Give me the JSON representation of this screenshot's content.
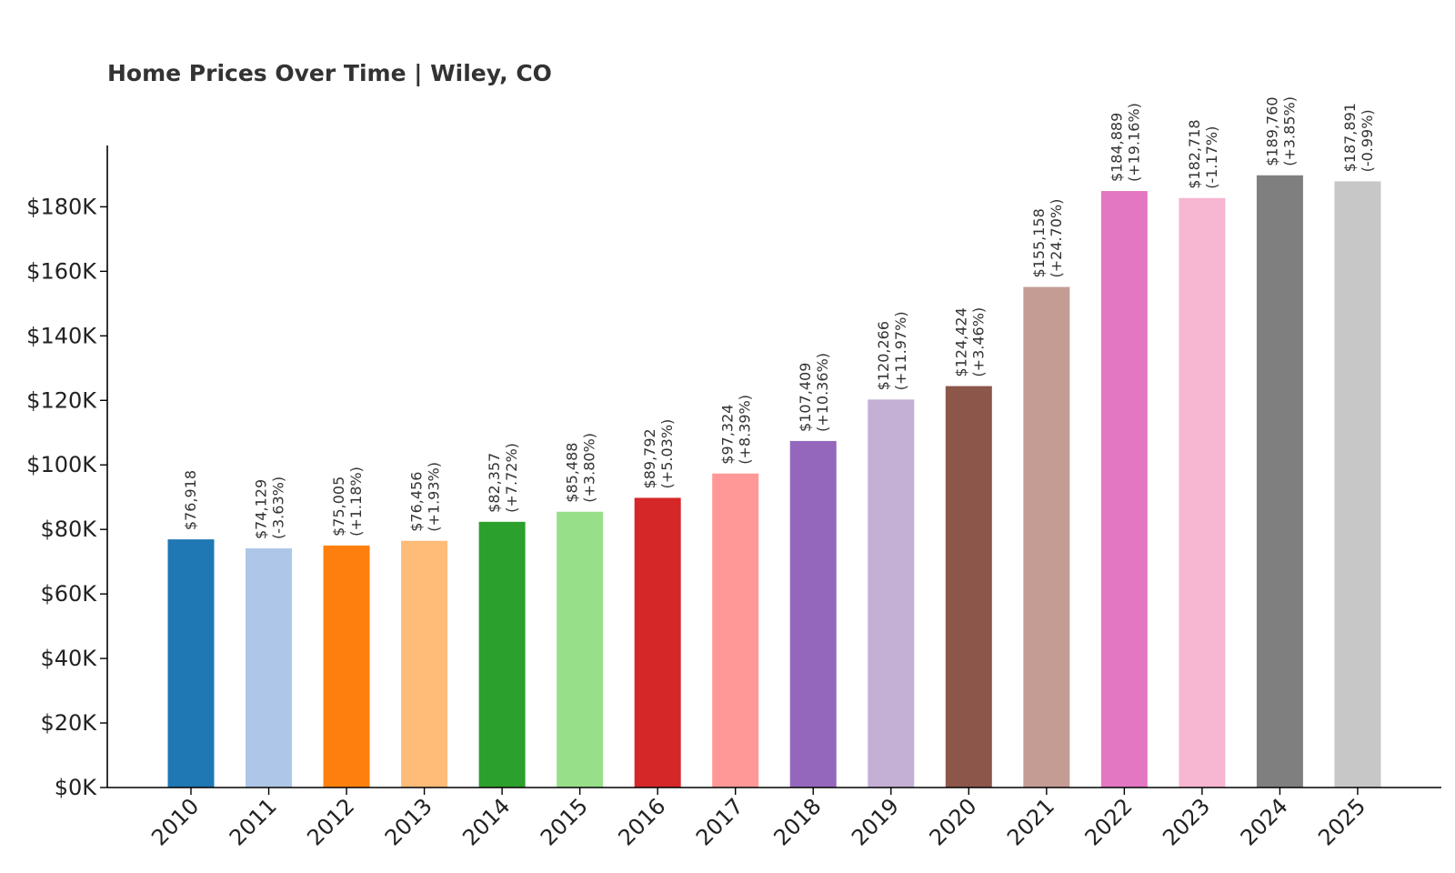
{
  "chart_data": {
    "type": "bar",
    "title": "Home Prices Over Time | Wiley, CO",
    "xlabel": "",
    "ylabel": "",
    "ylim": [
      0,
      199000
    ],
    "yticks": [
      0,
      20000,
      40000,
      60000,
      80000,
      100000,
      120000,
      140000,
      160000,
      180000
    ],
    "ytick_labels": [
      "$0K",
      "$20K",
      "$40K",
      "$60K",
      "$80K",
      "$100K",
      "$120K",
      "$140K",
      "$160K",
      "$180K"
    ],
    "grid": false,
    "legend": "none",
    "categories": [
      "2010",
      "2011",
      "2012",
      "2013",
      "2014",
      "2015",
      "2016",
      "2017",
      "2018",
      "2019",
      "2020",
      "2021",
      "2022",
      "2023",
      "2024",
      "2025"
    ],
    "values": [
      76918,
      74129,
      75005,
      76456,
      82357,
      85488,
      89792,
      97324,
      107409,
      120266,
      124424,
      155158,
      184889,
      182718,
      189760,
      187891
    ],
    "value_labels": [
      "$76,918",
      "$74,129",
      "$75,005",
      "$76,456",
      "$82,357",
      "$85,488",
      "$89,792",
      "$97,324",
      "$107,409",
      "$120,266",
      "$124,424",
      "$155,158",
      "$184,889",
      "$182,718",
      "$189,760",
      "$187,891"
    ],
    "change_labels": [
      "",
      "(-3.63%)",
      "(+1.18%)",
      "(+1.93%)",
      "(+7.72%)",
      "(+3.80%)",
      "(+5.03%)",
      "(+8.39%)",
      "(+10.36%)",
      "(+11.97%)",
      "(+3.46%)",
      "(+24.70%)",
      "(+19.16%)",
      "(-1.17%)",
      "(+3.85%)",
      "(-0.99%)"
    ],
    "colors": [
      "#1f77b4",
      "#aec7e8",
      "#ff7f0e",
      "#ffbb78",
      "#2ca02c",
      "#98df8a",
      "#d62728",
      "#ff9896",
      "#9467bd",
      "#c5b0d5",
      "#8c564b",
      "#c49c94",
      "#e377c2",
      "#f7b6d2",
      "#7f7f7f",
      "#c7c7c7"
    ]
  }
}
